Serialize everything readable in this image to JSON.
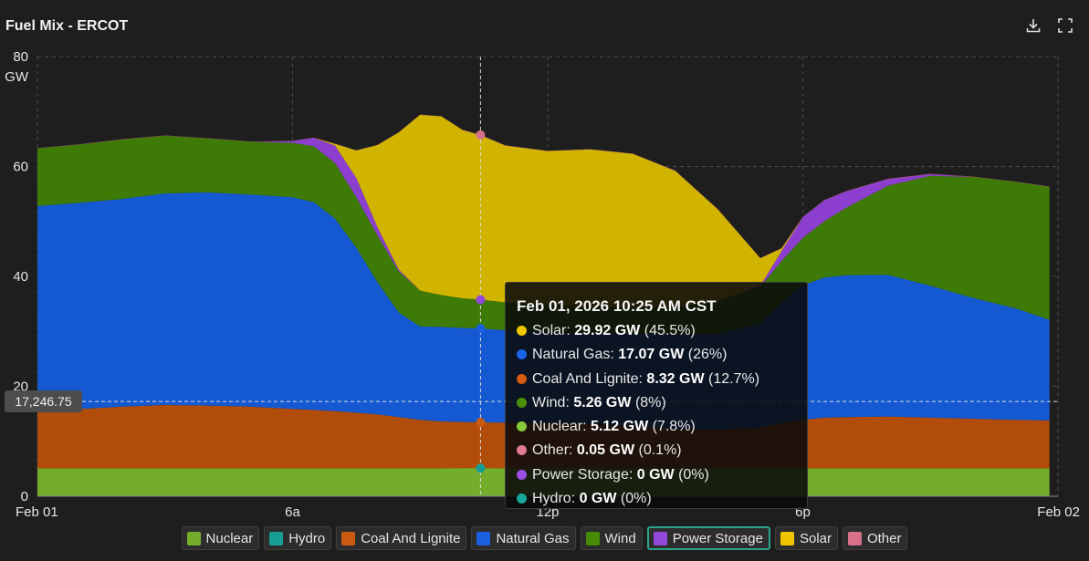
{
  "header": {
    "title": "Fuel Mix - ERCOT",
    "download_icon": "download-icon",
    "fullscreen_icon": "fullscreen-icon"
  },
  "chart_data": {
    "type": "area",
    "stacked": true,
    "title": "Fuel Mix - ERCOT",
    "ylabel": "GW",
    "xlim_hours": [
      0,
      24
    ],
    "ylim": [
      0,
      80
    ],
    "y_ticks": [
      0,
      20,
      40,
      60,
      80
    ],
    "x_ticks": [
      {
        "h": 0,
        "label": "Feb 01"
      },
      {
        "h": 6,
        "label": "6a"
      },
      {
        "h": 12,
        "label": "12p"
      },
      {
        "h": 18,
        "label": "6p"
      },
      {
        "h": 24,
        "label": "Feb 02"
      }
    ],
    "x": [
      0,
      1,
      2,
      3,
      4,
      5,
      6,
      6.5,
      7,
      7.5,
      8,
      8.5,
      9,
      9.5,
      10,
      10.42,
      11,
      12,
      13,
      14,
      15,
      16,
      17,
      17.5,
      18,
      18.5,
      19,
      20,
      21,
      22,
      23,
      23.8
    ],
    "series": [
      {
        "name": "Nuclear",
        "color": "#74ad2c",
        "values": [
          5.1,
          5.1,
          5.1,
          5.1,
          5.1,
          5.1,
          5.1,
          5.1,
          5.1,
          5.1,
          5.1,
          5.1,
          5.1,
          5.1,
          5.12,
          5.12,
          5.1,
          5.1,
          5.1,
          5.1,
          5.1,
          5.1,
          5.1,
          5.1,
          5.1,
          5.1,
          5.1,
          5.1,
          5.1,
          5.1,
          5.1,
          5.1
        ]
      },
      {
        "name": "Hydro",
        "color": "#169e94",
        "values": [
          0,
          0,
          0,
          0,
          0,
          0,
          0,
          0,
          0,
          0,
          0,
          0,
          0,
          0,
          0,
          0,
          0,
          0,
          0,
          0,
          0,
          0,
          0,
          0,
          0,
          0,
          0,
          0,
          0,
          0,
          0,
          0
        ]
      },
      {
        "name": "Coal And Lignite",
        "color": "#b14c0b",
        "values": [
          10.7,
          10.8,
          11.2,
          11.5,
          11.4,
          11.2,
          10.8,
          10.6,
          10.4,
          10.1,
          9.8,
          9.3,
          8.8,
          8.5,
          8.4,
          8.32,
          8.3,
          8.2,
          8.1,
          7.6,
          7.2,
          7.0,
          7.4,
          8.2,
          8.8,
          9.2,
          9.3,
          9.4,
          9.2,
          9.0,
          8.8,
          8.7
        ]
      },
      {
        "name": "Natural Gas",
        "color": "#1459d1",
        "values": [
          37.0,
          37.5,
          37.8,
          38.5,
          38.8,
          38.6,
          38.5,
          37.8,
          35.0,
          30.0,
          24.0,
          19.0,
          17.0,
          17.2,
          17.1,
          17.07,
          16.8,
          16.5,
          16.5,
          16.9,
          17.2,
          17.4,
          19.0,
          22.0,
          24.5,
          25.5,
          25.8,
          25.8,
          24.0,
          22.0,
          20.3,
          18.3
        ]
      },
      {
        "name": "Wind",
        "color": "#3e7a06",
        "values": [
          10.5,
          10.6,
          10.8,
          10.5,
          9.8,
          9.6,
          9.9,
          10.2,
          10.1,
          9.2,
          8.5,
          7.5,
          6.5,
          5.8,
          5.4,
          5.26,
          5.1,
          5.0,
          4.9,
          4.8,
          4.9,
          6.0,
          6.6,
          7.5,
          8.6,
          10.2,
          12.2,
          16.2,
          20.0,
          22.0,
          23.0,
          24.2
        ]
      },
      {
        "name": "Power Storage",
        "color": "#8c3fcf",
        "values": [
          0,
          0,
          0,
          0,
          0,
          0,
          0.3,
          1.5,
          3.2,
          3.5,
          1.5,
          0.3,
          0,
          0,
          0,
          0,
          0,
          0,
          0,
          0,
          0,
          0,
          0.2,
          1.8,
          3.8,
          3.8,
          3.0,
          1.2,
          0.3,
          0,
          0,
          0
        ]
      },
      {
        "name": "Solar",
        "color": "#d1b400",
        "values": [
          0,
          0,
          0,
          0,
          0,
          0,
          0,
          0,
          0.3,
          5.0,
          15.0,
          25.0,
          32.0,
          32.5,
          30.6,
          29.92,
          28.5,
          28.0,
          28.5,
          27.9,
          24.8,
          16.7,
          5.0,
          0.5,
          0,
          0,
          0,
          0,
          0,
          0,
          0,
          0
        ]
      },
      {
        "name": "Other",
        "color": "#d9708a",
        "values": [
          0.05,
          0.05,
          0.05,
          0.05,
          0.05,
          0.05,
          0.05,
          0.05,
          0.05,
          0.05,
          0.05,
          0.05,
          0.05,
          0.05,
          0.05,
          0.05,
          0.05,
          0.05,
          0.05,
          0.05,
          0.05,
          0.05,
          0.05,
          0.05,
          0.05,
          0.05,
          0.05,
          0.05,
          0.05,
          0.05,
          0.05,
          0.05
        ]
      }
    ],
    "hover": {
      "h": 10.42,
      "y_readout": "17,246.75",
      "y_value": 17246.75
    }
  },
  "tooltip": {
    "title": "Feb 01, 2026 10:25 AM CST",
    "rows": [
      {
        "name": "Solar",
        "value": "29.92 GW",
        "pct": "(45.5%)",
        "color": "#f0c800"
      },
      {
        "name": "Natural Gas",
        "value": "17.07 GW",
        "pct": "(26%)",
        "color": "#1a63e8"
      },
      {
        "name": "Coal And Lignite",
        "value": "8.32 GW",
        "pct": "(12.7%)",
        "color": "#d45c10"
      },
      {
        "name": "Wind",
        "value": "5.26 GW",
        "pct": "(8%)",
        "color": "#4a8f0a"
      },
      {
        "name": "Nuclear",
        "value": "5.12 GW",
        "pct": "(7.8%)",
        "color": "#86c93a"
      },
      {
        "name": "Other",
        "value": "0.05 GW",
        "pct": "(0.1%)",
        "color": "#e07a95"
      },
      {
        "name": "Power Storage",
        "value": "0 GW",
        "pct": "(0%)",
        "color": "#9a4fe0"
      },
      {
        "name": "Hydro",
        "value": "0 GW",
        "pct": "(0%)",
        "color": "#18a79c"
      }
    ]
  },
  "legend": [
    {
      "label": "Nuclear",
      "color": "#74ad2c",
      "active": false
    },
    {
      "label": "Hydro",
      "color": "#169e94",
      "active": false
    },
    {
      "label": "Coal And Lignite",
      "color": "#c95a10",
      "active": false
    },
    {
      "label": "Natural Gas",
      "color": "#1a5fe0",
      "active": false
    },
    {
      "label": "Wind",
      "color": "#468a08",
      "active": false
    },
    {
      "label": "Power Storage",
      "color": "#9447db",
      "active": true
    },
    {
      "label": "Solar",
      "color": "#f0c400",
      "active": false
    },
    {
      "label": "Other",
      "color": "#d9708a",
      "active": false
    }
  ]
}
